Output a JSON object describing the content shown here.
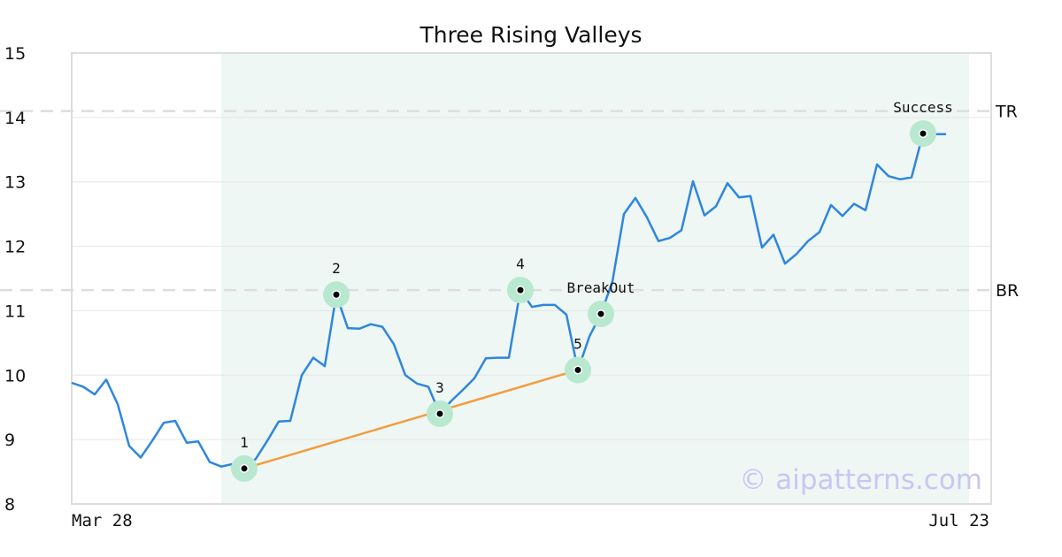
{
  "chart_data": {
    "type": "line",
    "title": "Three Rising Valleys",
    "watermark": "© aipatterns.com",
    "ylim": [
      8,
      15
    ],
    "yticks": [
      "8",
      "9",
      "10",
      "11",
      "12",
      "13",
      "14",
      "15"
    ],
    "x_start_label": "Mar 28",
    "x_end_label": "Jul 23",
    "grid": true,
    "colors": {
      "price": "#2e86de",
      "trend": "#f39c3f",
      "marker_halo": "#b9e8d0",
      "marker_dot": "#000000",
      "shade": "#eef7f3",
      "level_line": "#dddddd"
    },
    "levels": [
      {
        "label": "TR",
        "value": 14.1
      },
      {
        "label": "BR",
        "value": 11.32
      }
    ],
    "shaded_index_range": [
      13,
      78
    ],
    "series": [
      {
        "values": [
          9.88,
          9.82,
          9.7,
          9.93,
          9.55,
          8.9,
          8.72,
          8.98,
          9.26,
          9.29,
          8.95,
          8.97,
          8.65,
          8.58,
          8.62,
          8.55,
          8.7,
          8.98,
          9.28,
          9.29,
          10.0,
          10.27,
          10.14,
          11.25,
          10.73,
          10.72,
          10.79,
          10.75,
          10.48,
          10.0,
          9.87,
          9.82,
          9.4,
          9.6,
          9.77,
          9.95,
          10.26,
          10.27,
          10.27,
          11.32,
          11.06,
          11.09,
          11.09,
          10.94,
          10.08,
          10.6,
          10.95,
          11.45,
          12.5,
          12.75,
          12.45,
          12.08,
          12.13,
          12.25,
          13.01,
          12.48,
          12.62,
          12.98,
          12.76,
          12.78,
          11.98,
          12.18,
          11.73,
          11.88,
          12.08,
          12.22,
          12.64,
          12.47,
          12.66,
          12.56,
          13.27,
          13.09,
          13.04,
          13.07,
          13.75,
          13.74,
          13.74
        ]
      }
    ],
    "trendline": {
      "from_index": 15,
      "to_index": 44,
      "from_value": 8.55,
      "to_value": 10.08
    },
    "markers": [
      {
        "index": 15,
        "value": 8.55,
        "label": "1",
        "label_pos": "above"
      },
      {
        "index": 23,
        "value": 11.25,
        "label": "2",
        "label_pos": "above"
      },
      {
        "index": 32,
        "value": 9.4,
        "label": "3",
        "label_pos": "above"
      },
      {
        "index": 39,
        "value": 11.32,
        "label": "4",
        "label_pos": "above"
      },
      {
        "index": 44,
        "value": 10.08,
        "label": "5",
        "label_pos": "above"
      },
      {
        "index": 46,
        "value": 10.95,
        "label": "BreakOut",
        "label_pos": "above"
      },
      {
        "index": 74,
        "value": 13.75,
        "label": "Success",
        "label_pos": "above"
      }
    ]
  }
}
